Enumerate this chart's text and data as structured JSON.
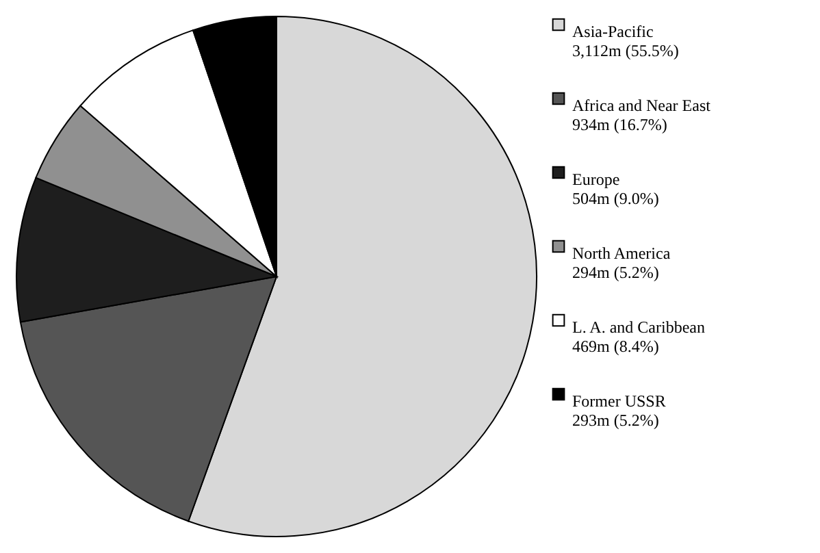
{
  "chart_data": {
    "type": "pie",
    "categories": [
      "Asia-Pacific",
      "Africa and Near East",
      "Europe",
      "North America",
      "L. A. and Caribbean",
      "Former USSR"
    ],
    "values": [
      55.5,
      16.7,
      9.0,
      5.2,
      8.4,
      5.2
    ],
    "value_labels": [
      "3,112m (55.5%)",
      "934m (16.7%)",
      "504m (9.0%)",
      "294m (5.2%)",
      "469m (8.4%)",
      "293m (5.2%)"
    ],
    "colors": [
      "#d8d8d8",
      "#555555",
      "#1e1e1e",
      "#909090",
      "#ffffff",
      "#000000"
    ],
    "legend": "right"
  }
}
